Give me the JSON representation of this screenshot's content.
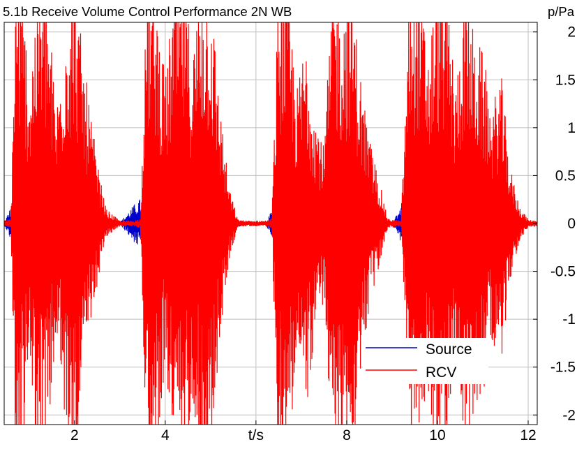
{
  "chart_data": {
    "type": "line",
    "title": "5.1b Receive Volume Control Performance 2N WB",
    "ylabel": "p/Pa",
    "xlabel": "t/s",
    "xlim": [
      0.45,
      12.2
    ],
    "ylim": [
      -2.1,
      2.1
    ],
    "x_ticks": [
      {
        "value": 2,
        "label": "2"
      },
      {
        "value": 4,
        "label": "4"
      },
      {
        "value": 6,
        "label": "t/s"
      },
      {
        "value": 8,
        "label": "8"
      },
      {
        "value": 10,
        "label": "10"
      },
      {
        "value": 12,
        "label": "12"
      }
    ],
    "y_ticks": [
      {
        "value": 2,
        "label": "2"
      },
      {
        "value": 1.5,
        "label": "1.5"
      },
      {
        "value": 1,
        "label": "1"
      },
      {
        "value": 0.5,
        "label": "0.5"
      },
      {
        "value": 0,
        "label": "0"
      },
      {
        "value": -0.5,
        "label": "-0.5"
      },
      {
        "value": -1,
        "label": "-1"
      },
      {
        "value": -1.5,
        "label": "-1.5"
      },
      {
        "value": -2,
        "label": "-2"
      }
    ],
    "grid": true,
    "legend": "bottom-right",
    "series": [
      {
        "name": "Source",
        "color": "#0000cc",
        "envelope": {
          "t": [
            0.45,
            0.7,
            0.9,
            1.2,
            1.5,
            1.8,
            2.1,
            2.4,
            2.65,
            3.0,
            3.4,
            3.7,
            4.0,
            4.3,
            4.6,
            5.0,
            5.4,
            5.8,
            6.2,
            6.5,
            6.8,
            7.1,
            7.4,
            7.8,
            8.1,
            8.4,
            8.6,
            9.0,
            9.3,
            9.6,
            9.9,
            10.2,
            10.5,
            10.8,
            11.1,
            11.4,
            11.7,
            12.2
          ],
          "amplitude": [
            0.01,
            0.3,
            0.25,
            0.3,
            0.28,
            0.25,
            0.3,
            0.25,
            0.08,
            0.01,
            0.25,
            0.3,
            0.3,
            0.28,
            0.3,
            0.35,
            0.08,
            0.01,
            0.01,
            0.25,
            0.3,
            0.28,
            0.32,
            0.25,
            0.35,
            0.2,
            0.06,
            0.01,
            0.3,
            0.3,
            0.25,
            0.3,
            0.25,
            0.3,
            0.25,
            0.2,
            0.05,
            0.01
          ]
        }
      },
      {
        "name": "RCV",
        "color": "#ff0000",
        "envelope": {
          "t": [
            0.45,
            0.6,
            0.7,
            0.9,
            1.0,
            1.2,
            1.4,
            1.6,
            1.8,
            2.0,
            2.2,
            2.4,
            2.55,
            2.7,
            3.0,
            3.3,
            3.45,
            3.6,
            3.8,
            4.0,
            4.2,
            4.4,
            4.6,
            4.8,
            5.0,
            5.2,
            5.4,
            5.6,
            5.8,
            6.0,
            6.2,
            6.35,
            6.5,
            6.7,
            6.9,
            7.1,
            7.3,
            7.5,
            7.7,
            7.9,
            8.1,
            8.3,
            8.5,
            8.7,
            8.9,
            9.2,
            9.4,
            9.6,
            9.8,
            10.0,
            10.2,
            10.4,
            10.6,
            10.8,
            11.0,
            11.2,
            11.4,
            11.6,
            11.8,
            12.0,
            12.2
          ],
          "amplitude": [
            0.03,
            0.05,
            2.6,
            2.2,
            1.5,
            2.6,
            2.4,
            1.2,
            2.2,
            2.6,
            1.7,
            1.0,
            0.5,
            0.15,
            0.03,
            0.03,
            0.05,
            2.6,
            2.4,
            1.5,
            2.5,
            2.6,
            1.8,
            2.6,
            2.5,
            1.3,
            0.4,
            0.04,
            0.03,
            0.03,
            0.03,
            0.05,
            2.6,
            2.5,
            1.4,
            2.0,
            1.2,
            0.8,
            2.6,
            2.2,
            2.6,
            1.6,
            0.9,
            0.5,
            0.05,
            0.03,
            2.6,
            2.6,
            1.8,
            2.6,
            2.6,
            1.4,
            2.6,
            2.0,
            1.8,
            1.2,
            1.6,
            0.6,
            0.2,
            0.04,
            0.03
          ]
        }
      }
    ]
  }
}
